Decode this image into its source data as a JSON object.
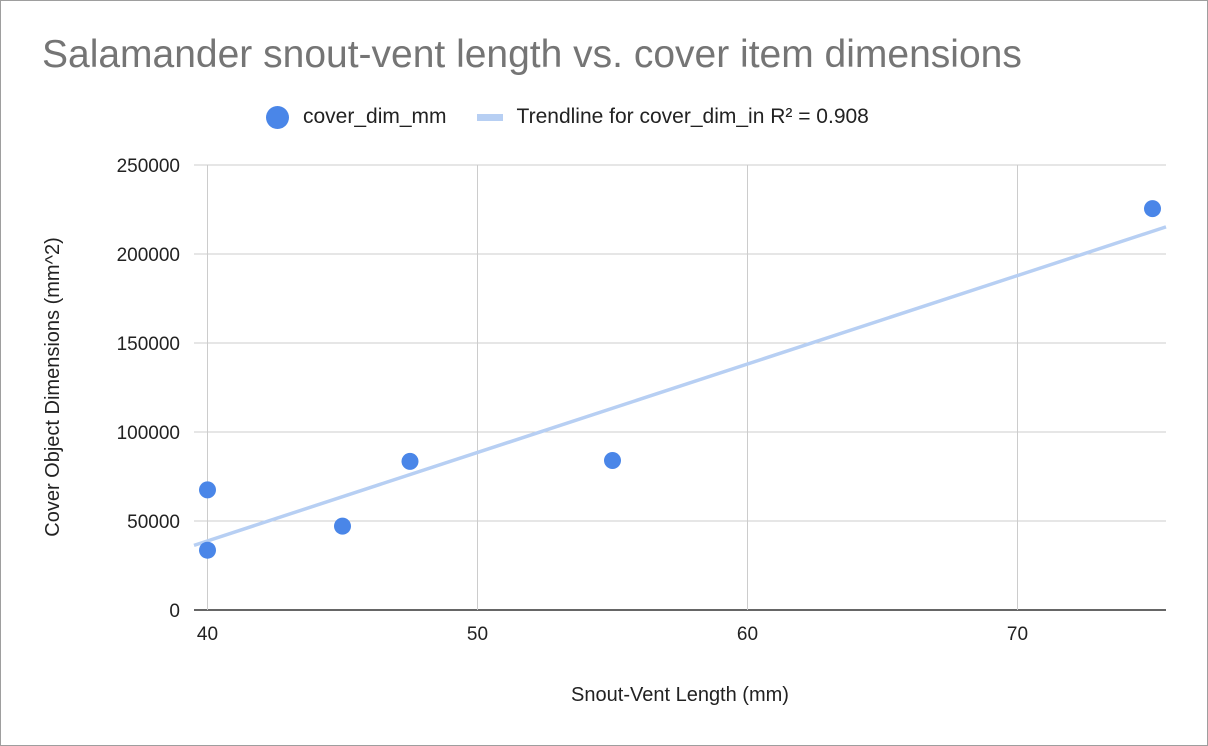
{
  "chart_data": {
    "type": "scatter",
    "title": "Salamander snout-vent length vs. cover item dimensions",
    "xlabel": "Snout-Vent Length (mm)",
    "ylabel": "Cover Object Dimensions (mm^2)",
    "xlim": [
      39.5,
      75.5
    ],
    "ylim": [
      0,
      250000
    ],
    "x_ticks": [
      40,
      50,
      60,
      70
    ],
    "y_ticks": [
      0,
      50000,
      100000,
      150000,
      200000,
      250000
    ],
    "x_tick_labels": [
      "40",
      "50",
      "60",
      "70"
    ],
    "y_tick_labels": [
      "0",
      "50000",
      "100000",
      "150000",
      "200000",
      "250000"
    ],
    "grid": true,
    "legend_position": "top",
    "series": [
      {
        "name": "cover_dim_mm",
        "color": "#4a86e8",
        "points": [
          {
            "x": 40,
            "y": 67500
          },
          {
            "x": 40,
            "y": 33600
          },
          {
            "x": 45,
            "y": 47100
          },
          {
            "x": 47.5,
            "y": 83500
          },
          {
            "x": 55,
            "y": 84000
          },
          {
            "x": 75,
            "y": 225500
          }
        ]
      }
    ],
    "trendline": {
      "label": "Trendline for cover_dim_in R² = 0.908",
      "color": "#b7cff3",
      "slope": 4970,
      "intercept": -160000
    }
  }
}
